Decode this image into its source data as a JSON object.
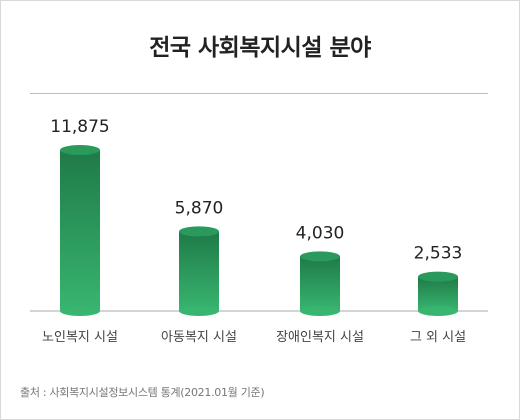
{
  "chart_data": {
    "type": "bar",
    "title": "전국 사회복지시설 분야",
    "categories": [
      "노인복지 시설",
      "아동복지 시설",
      "장애인복지 시설",
      "그 외 시설"
    ],
    "values": [
      11875,
      5870,
      4030,
      2533
    ],
    "value_labels": [
      "11,875",
      "5,870",
      "4,030",
      "2,533"
    ],
    "xlabel": "",
    "ylabel": "",
    "grid": false,
    "legend": "none",
    "colors": {
      "bar_dark": "#1f7a47",
      "bar_mid": "#2a9a5c",
      "bar_light": "#38b56f",
      "baseline": "#aaaaaa"
    }
  },
  "source": "출처 : 사회복지시설정보시스템 통계(2021.01월 기준)"
}
